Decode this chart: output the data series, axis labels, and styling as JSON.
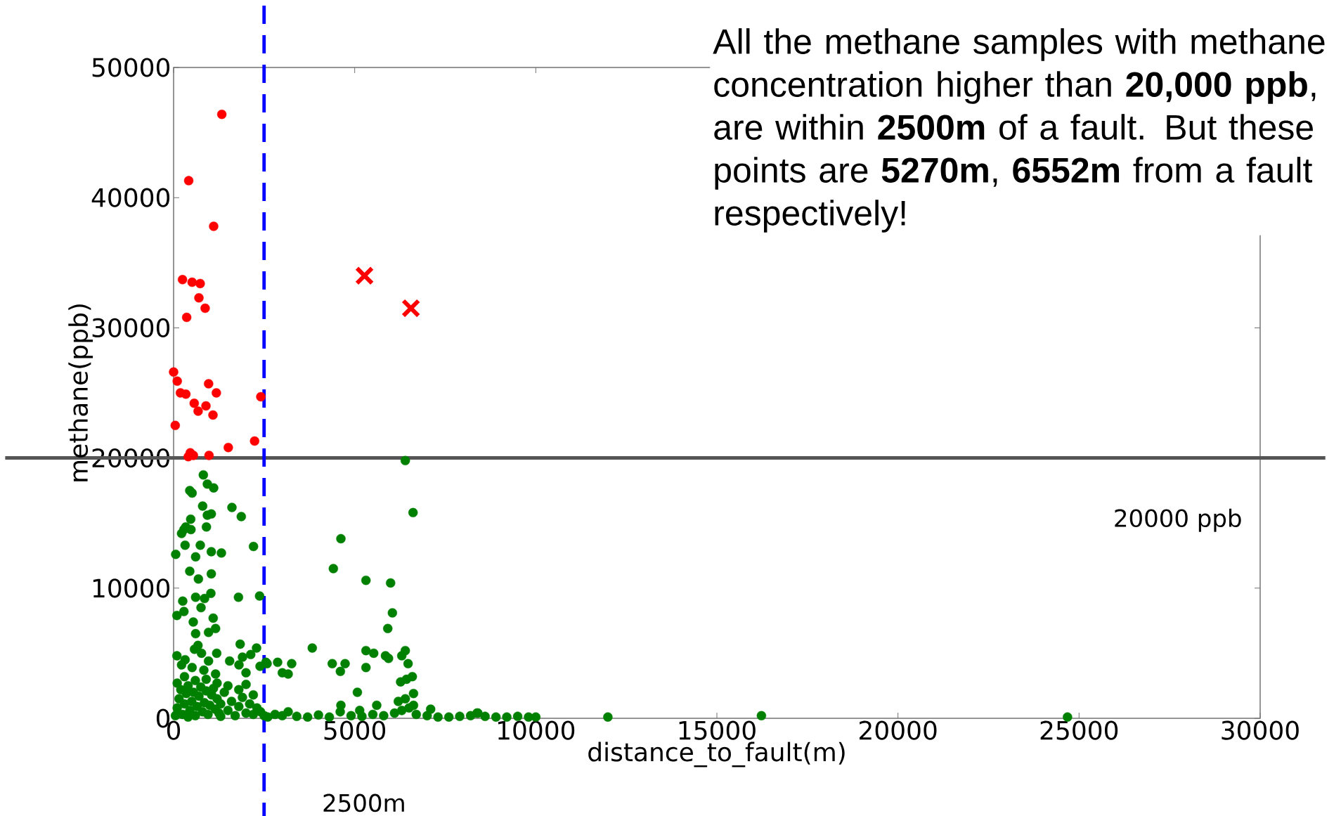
{
  "chart_data": {
    "type": "scatter",
    "xlabel": "distance_to_fault(m)",
    "ylabel": "methane(ppb)",
    "xlim": [
      0,
      30000
    ],
    "ylim": [
      0,
      50000
    ],
    "xticks": [
      0,
      5000,
      10000,
      15000,
      20000,
      25000,
      30000
    ],
    "yticks": [
      0,
      10000,
      20000,
      30000,
      40000,
      50000
    ],
    "grid": false,
    "annotations": [
      "All the methane samples with methane concentration higher than **20,000 ppb**, are within **2500m** of a fault. But these points are **5270m**, **6552m** from a fault respectively!"
    ],
    "ref_lines": [
      {
        "axis": "y",
        "value": 20000,
        "label": "20000 ppb",
        "color": "#555555",
        "line_style": "solid"
      },
      {
        "axis": "x",
        "value": 2500,
        "label": "2500m",
        "color": "#0000ff",
        "line_style": "dashed"
      }
    ],
    "series": [
      {
        "color": "#ff0000",
        "marker": "circle",
        "x": [
          1331,
          417,
          1106,
          245,
          511,
          734,
          699,
          871,
          361,
          0,
          101,
          966,
          188,
          338,
          1180,
          569,
          893,
          677,
          1087,
          2408,
          45,
          2236,
          1510,
          460,
          547,
          978,
          404
        ],
        "values": [
          46400,
          41300,
          37800,
          33700,
          33500,
          33400,
          32300,
          31500,
          30800,
          26600,
          25900,
          25700,
          25000,
          24900,
          25000,
          24200,
          24000,
          23600,
          23300,
          24700,
          22500,
          21300,
          20800,
          20400,
          20200,
          20200,
          20100
        ]
      },
      {
        "color": "#008000",
        "marker": "circle",
        "x": [
          821,
          932,
          1106,
          446,
          511,
          802,
          1611,
          1869,
          932,
          1041,
          472,
          285,
          479,
          336,
          220,
          906,
          317,
          737,
          58,
          1041,
          1320,
          608,
          2206,
          446,
          1041,
          685,
          608,
          854,
          1029,
          252,
          91,
          285,
          757,
          1791,
          2374,
          543,
          1093,
          1158,
          964,
          608,
          673,
          1838,
          2290,
          2129,
          1547,
          1190,
          1902,
          2581,
          2387,
          2549,
          1805,
          1999,
          2872,
          3260,
          3002,
          3163,
          91,
          317,
          576,
          770,
          220,
          511,
          964,
          1158,
          835,
          6397,
          6611,
          4619,
          4411,
          5311,
          5991,
          6041,
          5913,
          3829,
          4380,
          4735,
          4605,
          5311,
          5525,
          5311,
          5850,
          5934,
          6397,
          6300,
          6474,
          6591,
          6430,
          6268,
          6624,
          5074,
          5608,
          5137,
          7097,
          4619,
          6204,
          6397,
          6624,
          3163,
          8378,
          11990,
          16230,
          24680,
          2800,
          3000,
          3400,
          3700,
          4000,
          4300,
          4600,
          4900,
          5200,
          5500,
          5800,
          6100,
          6300,
          6500,
          6700,
          7000,
          7300,
          7600,
          7900,
          8200,
          8400,
          8600,
          8900,
          9200,
          9500,
          9800,
          10000,
          50,
          100,
          150,
          200,
          250,
          300,
          350,
          400,
          450,
          500,
          550,
          600,
          650,
          700,
          750,
          800,
          850,
          900,
          950,
          1000,
          1050,
          1100,
          1150,
          1200,
          1250,
          1300,
          1400,
          1500,
          1600,
          1700,
          1800,
          1900,
          2000,
          2100,
          2200,
          2300,
          2400,
          2500,
          2600,
          100,
          300,
          600,
          900,
          1200,
          1500,
          1800,
          2000,
          2200,
          400,
          1300
        ],
        "values": [
          18700,
          18000,
          17700,
          17500,
          17300,
          16300,
          16200,
          15500,
          15600,
          15700,
          15300,
          14500,
          14500,
          14700,
          14200,
          14700,
          13300,
          13300,
          12600,
          12800,
          12700,
          12400,
          13200,
          11300,
          11100,
          10700,
          9300,
          9200,
          9600,
          9000,
          7900,
          8200,
          8500,
          9300,
          9400,
          7400,
          7700,
          6900,
          6600,
          6500,
          5600,
          5700,
          5400,
          4900,
          4400,
          5000,
          4700,
          4200,
          4000,
          4300,
          4100,
          3500,
          4300,
          4200,
          3500,
          3400,
          4800,
          4500,
          5300,
          5000,
          4100,
          3900,
          4400,
          3400,
          3700,
          19800,
          15800,
          13800,
          11500,
          10600,
          10400,
          8100,
          6900,
          5400,
          4200,
          4200,
          3600,
          5200,
          5000,
          3900,
          4800,
          4600,
          5200,
          4800,
          4200,
          3200,
          3000,
          2800,
          1900,
          2000,
          1000,
          600,
          700,
          1000,
          1300,
          1500,
          1000,
          500,
          400,
          100,
          200,
          100,
          300,
          200,
          150,
          100,
          250,
          100,
          500,
          200,
          150,
          300,
          200,
          400,
          600,
          800,
          300,
          200,
          100,
          100,
          150,
          200,
          400,
          150,
          100,
          100,
          150,
          100,
          100,
          200,
          800,
          1500,
          2200,
          300,
          1100,
          1900,
          2500,
          600,
          1300,
          2000,
          200,
          900,
          1700,
          2400,
          500,
          1200,
          2100,
          300,
          1000,
          1800,
          2300,
          700,
          1500,
          400,
          1100,
          2000,
          600,
          1300,
          200,
          900,
          1600,
          400,
          1100,
          300,
          800,
          500,
          200,
          100,
          2700,
          3200,
          2900,
          3000,
          2700,
          2500,
          2200,
          2600,
          1800,
          100,
          150
        ]
      },
      {
        "color": "#ff0000",
        "marker": "cross",
        "x": [
          5270,
          6552
        ],
        "values": [
          34000,
          31500
        ]
      }
    ]
  }
}
